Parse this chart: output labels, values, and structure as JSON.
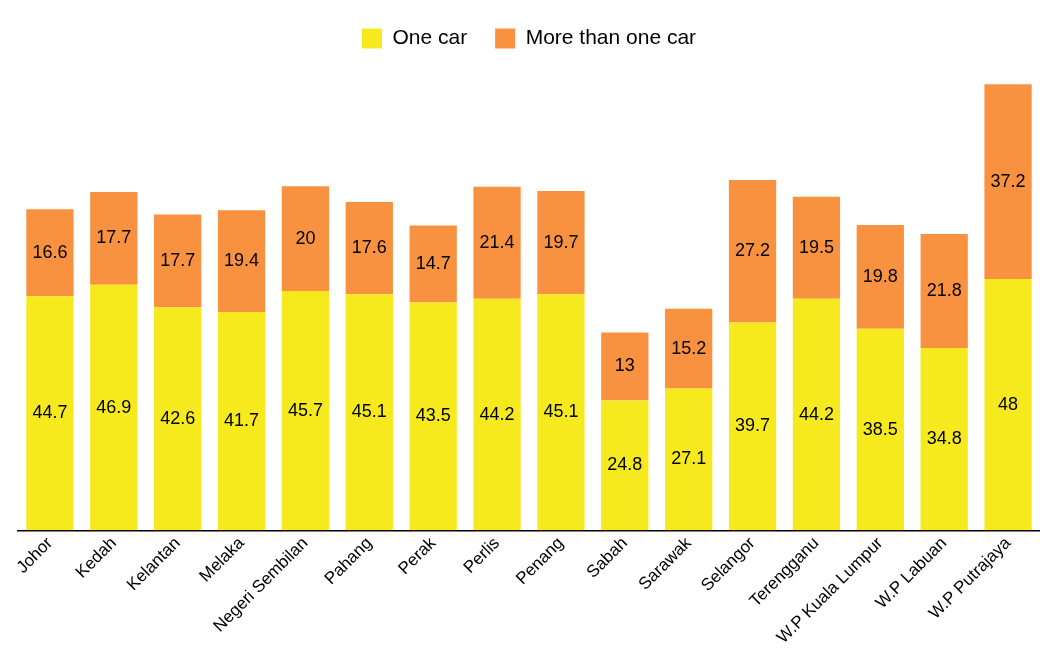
{
  "chart_data": {
    "type": "bar",
    "stacked": true,
    "data_labels": true,
    "legend": "top",
    "grid": false,
    "tick_labels": "x",
    "categories": [
      "Johor",
      "Kedah",
      "Kelantan",
      "Melaka",
      "Negeri Sembilan",
      "Pahang",
      "Perak",
      "Perlis",
      "Penang",
      "Sabah",
      "Sarawak",
      "Selangor",
      "Terengganu",
      "W.P Kuala Lumpur",
      "W.P Labuan",
      "W.P Putrajaya"
    ],
    "series": [
      {
        "name": "One car",
        "color": "#f6ea1f",
        "values": [
          44.7,
          46.9,
          42.6,
          41.7,
          45.7,
          45.1,
          43.5,
          44.2,
          45.1,
          24.8,
          27.1,
          39.7,
          44.2,
          38.5,
          34.8,
          48
        ]
      },
      {
        "name": "More than one car",
        "color": "#f89240",
        "values": [
          16.6,
          17.7,
          17.7,
          19.4,
          20,
          17.6,
          14.7,
          21.4,
          19.7,
          13,
          15.2,
          27.2,
          19.5,
          19.8,
          21.8,
          37.2
        ]
      }
    ]
  }
}
